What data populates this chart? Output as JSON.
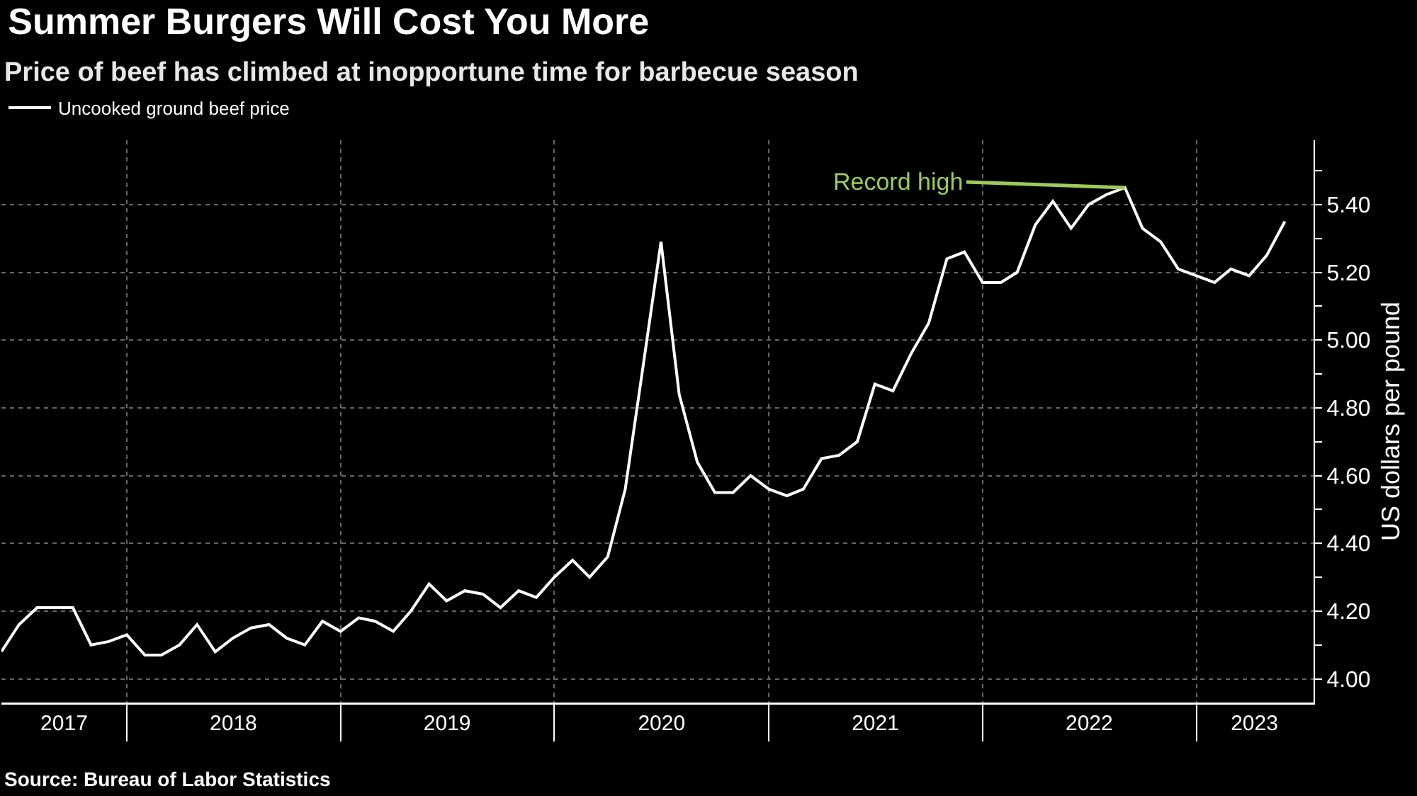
{
  "chart_data": {
    "type": "line",
    "title": "Summer Burgers Will Cost You More",
    "subtitle": "Price of beef has climbed at inopportune time for barbecue season",
    "ylabel": "US dollars per pound",
    "x": [
      "2017-06",
      "2017-07",
      "2017-08",
      "2017-09",
      "2017-10",
      "2017-11",
      "2017-12",
      "2018-01",
      "2018-02",
      "2018-03",
      "2018-04",
      "2018-05",
      "2018-06",
      "2018-07",
      "2018-08",
      "2018-09",
      "2018-10",
      "2018-11",
      "2018-12",
      "2019-01",
      "2019-02",
      "2019-03",
      "2019-04",
      "2019-05",
      "2019-06",
      "2019-07",
      "2019-08",
      "2019-09",
      "2019-10",
      "2019-11",
      "2019-12",
      "2020-01",
      "2020-02",
      "2020-03",
      "2020-04",
      "2020-05",
      "2020-06",
      "2020-07",
      "2020-08",
      "2020-09",
      "2020-10",
      "2020-11",
      "2020-12",
      "2021-01",
      "2021-02",
      "2021-03",
      "2021-04",
      "2021-05",
      "2021-06",
      "2021-07",
      "2021-08",
      "2021-09",
      "2021-10",
      "2021-11",
      "2021-12",
      "2022-01",
      "2022-02",
      "2022-03",
      "2022-04",
      "2022-05",
      "2022-06",
      "2022-07",
      "2022-08",
      "2022-09",
      "2022-10",
      "2022-11",
      "2022-12",
      "2023-01",
      "2023-02",
      "2023-03",
      "2023-04",
      "2023-05",
      "2023-06"
    ],
    "series": [
      {
        "name": "Uncooked ground beef price",
        "color": "#ffffff",
        "values": [
          4.08,
          4.16,
          4.21,
          4.21,
          4.21,
          4.1,
          4.11,
          4.13,
          4.07,
          4.07,
          4.1,
          4.16,
          4.08,
          4.12,
          4.15,
          4.16,
          4.12,
          4.1,
          4.17,
          4.14,
          4.18,
          4.17,
          4.14,
          4.2,
          4.28,
          4.23,
          4.26,
          4.25,
          4.21,
          4.26,
          4.24,
          4.3,
          4.35,
          4.3,
          4.36,
          4.56,
          4.93,
          5.29,
          4.84,
          4.64,
          4.55,
          4.55,
          4.6,
          4.56,
          4.54,
          4.56,
          4.65,
          4.66,
          4.7,
          4.87,
          4.85,
          4.96,
          5.05,
          5.24,
          5.26,
          5.17,
          5.17,
          5.2,
          5.34,
          5.41,
          5.33,
          5.4,
          5.43,
          5.45,
          5.33,
          5.29,
          5.21,
          5.19,
          5.17,
          5.21,
          5.19,
          5.25,
          5.35
        ]
      }
    ],
    "xlim": [
      "2017-06-01",
      "2023-07-20"
    ],
    "xticks": [
      {
        "value": "2017-09-16",
        "label": "2017"
      },
      {
        "value": "2018-01-01",
        "label": null
      },
      {
        "value": "2018-07-02",
        "label": "2018"
      },
      {
        "value": "2019-01-01",
        "label": null
      },
      {
        "value": "2019-07-02",
        "label": "2019"
      },
      {
        "value": "2020-01-01",
        "label": null
      },
      {
        "value": "2020-07-02",
        "label": "2020"
      },
      {
        "value": "2021-01-01",
        "label": null
      },
      {
        "value": "2021-07-02",
        "label": "2021"
      },
      {
        "value": "2022-01-01",
        "label": null
      },
      {
        "value": "2022-07-02",
        "label": "2022"
      },
      {
        "value": "2023-01-01",
        "label": null
      },
      {
        "value": "2023-04-10",
        "label": "2023"
      }
    ],
    "ylim": [
      3.93,
      5.59
    ],
    "yticks": [
      {
        "value": 4.0,
        "label": "4.00"
      },
      {
        "value": 4.1,
        "label": null
      },
      {
        "value": 4.2,
        "label": "4.20"
      },
      {
        "value": 4.3,
        "label": null
      },
      {
        "value": 4.4,
        "label": "4.40"
      },
      {
        "value": 4.5,
        "label": null
      },
      {
        "value": 4.6,
        "label": "4.60"
      },
      {
        "value": 4.7,
        "label": null
      },
      {
        "value": 4.8,
        "label": "4.80"
      },
      {
        "value": 4.9,
        "label": null
      },
      {
        "value": 5.0,
        "label": "5.00"
      },
      {
        "value": 5.1,
        "label": null
      },
      {
        "value": 5.2,
        "label": "5.20"
      },
      {
        "value": 5.3,
        "label": null
      },
      {
        "value": 5.4,
        "label": "5.40"
      },
      {
        "value": 5.5,
        "label": null
      }
    ],
    "grid": true,
    "legend": "top left",
    "marker": "none",
    "line_style": "solid",
    "annotations": [
      {
        "text": "Record high",
        "x": "2022-09",
        "y": 5.45
      },
      "Source: Bureau of Labor Statistics"
    ]
  }
}
